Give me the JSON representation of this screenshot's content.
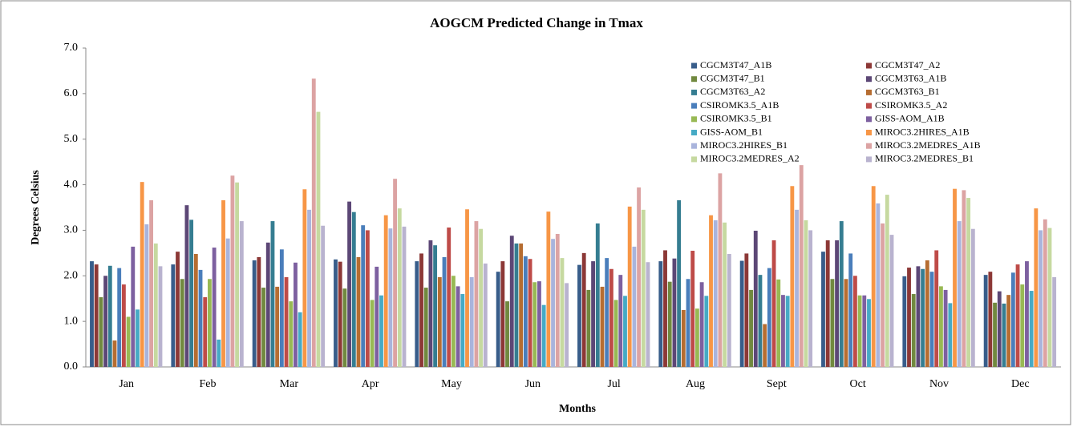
{
  "chart_data": {
    "type": "bar",
    "title": "AOGCM Predicted Change in Tmax",
    "x_label": "Months",
    "y_label": "Degrees Celsius",
    "categories": [
      "Jan",
      "Feb",
      "Mar",
      "Apr",
      "May",
      "Jun",
      "Jul",
      "Aug",
      "Sept",
      "Oct",
      "Nov",
      "Dec"
    ],
    "ylim": [
      0,
      7
    ],
    "yticks": [
      {
        "value": 0,
        "label": "0.0"
      },
      {
        "value": 1,
        "label": "1.0"
      },
      {
        "value": 2,
        "label": "2.0"
      },
      {
        "value": 3,
        "label": "3.0"
      },
      {
        "value": 4,
        "label": "4.0"
      },
      {
        "value": 5,
        "label": "5.0"
      },
      {
        "value": 6,
        "label": "6.0"
      },
      {
        "value": 7,
        "label": "7.0"
      }
    ],
    "grid": false,
    "series": [
      {
        "name": "CGCM3T47_A1B",
        "color": "#385d8a",
        "values": [
          2.32,
          2.25,
          2.34,
          2.36,
          2.32,
          2.09,
          2.24,
          2.32,
          2.33,
          2.53,
          1.99,
          2.02
        ]
      },
      {
        "name": "CGCM3T47_A2",
        "color": "#8c3836",
        "values": [
          2.25,
          2.53,
          2.41,
          2.31,
          2.49,
          2.32,
          2.5,
          2.56,
          2.49,
          2.78,
          2.18,
          2.09
        ]
      },
      {
        "name": "CGCM3T47_B1",
        "color": "#71893f",
        "values": [
          1.53,
          1.93,
          1.74,
          1.72,
          1.74,
          1.44,
          1.69,
          1.87,
          1.69,
          1.93,
          1.6,
          1.41
        ]
      },
      {
        "name": "CGCM3T63_A1B",
        "color": "#5c4776",
        "values": [
          2.0,
          3.55,
          2.73,
          3.63,
          2.78,
          2.88,
          2.32,
          2.38,
          2.99,
          2.78,
          2.21,
          1.66
        ]
      },
      {
        "name": "CGCM3T63_A2",
        "color": "#357d91",
        "values": [
          2.22,
          3.23,
          3.2,
          3.4,
          2.67,
          2.71,
          3.15,
          3.66,
          2.02,
          3.2,
          2.15,
          1.39
        ]
      },
      {
        "name": "CGCM3T63_B1",
        "color": "#b66d31",
        "values": [
          0.58,
          2.48,
          1.76,
          2.41,
          1.97,
          2.71,
          1.76,
          1.25,
          0.94,
          1.93,
          2.34,
          1.58
        ]
      },
      {
        "name": "CSIROMK3.5_A1B",
        "color": "#4a7ebb",
        "values": [
          2.17,
          2.13,
          2.58,
          3.11,
          2.41,
          2.43,
          2.39,
          1.93,
          2.17,
          2.49,
          2.09,
          2.07
        ]
      },
      {
        "name": "CSIROMK3.5_A2",
        "color": "#be4b48",
        "values": [
          1.81,
          1.53,
          1.97,
          3.0,
          3.06,
          2.37,
          2.15,
          2.55,
          2.78,
          2.0,
          2.56,
          2.25
        ]
      },
      {
        "name": "CSIROMK3.5_B1",
        "color": "#98b954",
        "values": [
          1.1,
          1.93,
          1.44,
          1.47,
          2.0,
          1.86,
          1.47,
          1.28,
          1.92,
          1.57,
          1.77,
          1.81
        ]
      },
      {
        "name": "GISS-AOM_A1B",
        "color": "#7d60a0",
        "values": [
          2.64,
          2.62,
          2.29,
          2.2,
          1.77,
          1.88,
          2.02,
          1.86,
          1.58,
          1.57,
          1.69,
          2.32
        ]
      },
      {
        "name": "GISS-AOM_B1",
        "color": "#46aac5",
        "values": [
          1.26,
          0.6,
          1.2,
          1.57,
          1.6,
          1.36,
          1.56,
          1.56,
          1.56,
          1.49,
          1.4,
          1.67
        ]
      },
      {
        "name": "MIROC3.2HIRES_A1B",
        "color": "#f79646",
        "values": [
          4.06,
          3.66,
          3.9,
          3.33,
          3.46,
          3.41,
          3.52,
          3.33,
          3.97,
          3.97,
          3.91,
          3.48
        ]
      },
      {
        "name": "MIROC3.2HIRES_B1",
        "color": "#a9b4dc",
        "values": [
          3.13,
          2.82,
          3.45,
          3.04,
          1.97,
          2.81,
          2.64,
          3.22,
          3.45,
          3.59,
          3.2,
          3.0
        ]
      },
      {
        "name": "MIROC3.2MEDRES_A1B",
        "color": "#dca3a3",
        "values": [
          3.66,
          4.2,
          6.33,
          4.13,
          3.2,
          2.92,
          3.94,
          4.25,
          4.43,
          3.15,
          3.88,
          3.24
        ]
      },
      {
        "name": "MIROC3.2MEDRES_A2",
        "color": "#c6d9a0",
        "values": [
          2.71,
          4.05,
          5.6,
          3.48,
          3.03,
          2.39,
          3.45,
          3.17,
          3.22,
          3.78,
          3.71,
          3.05
        ]
      },
      {
        "name": "MIROC3.2MEDRES_B1",
        "color": "#b9b3cf",
        "values": [
          2.21,
          3.2,
          3.1,
          3.08,
          2.27,
          1.84,
          2.3,
          2.48,
          3.0,
          2.9,
          3.03,
          1.97
        ]
      }
    ]
  }
}
